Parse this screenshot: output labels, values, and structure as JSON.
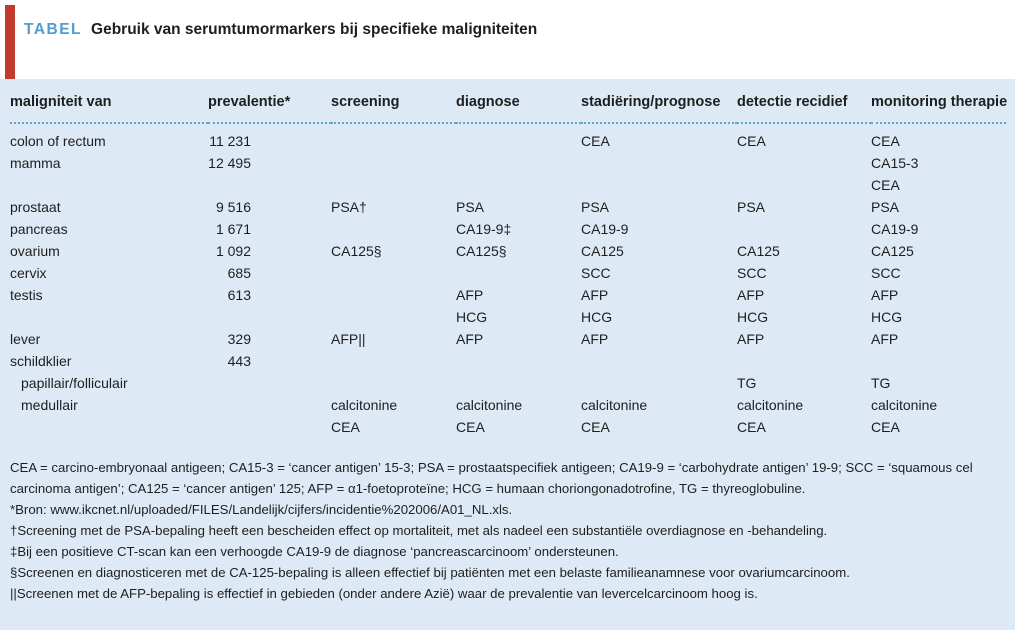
{
  "title": {
    "label": "TABEL",
    "text": "Gebruik van serumtumormarkers bij specifieke maligniteiten"
  },
  "colors": {
    "accent_bar": "#c23b2e",
    "tabel_label": "#4f9cce",
    "panel_background": "#ddeaf5",
    "dotted_rule": "#6ba4cf",
    "text": "#1e1e1e"
  },
  "table": {
    "columns": [
      "maligniteit van",
      "prevalentie*",
      "screening",
      "diagnose",
      "stadiëring/prognose",
      "detectie recidief",
      "monitoring therapie"
    ],
    "rows": [
      {
        "indent": false,
        "cells": [
          "colon of rectum",
          "11 231",
          "",
          "",
          "CEA",
          "CEA",
          "CEA"
        ]
      },
      {
        "indent": false,
        "cells": [
          "mamma",
          "12 495",
          "",
          "",
          "",
          "",
          "CA15-3"
        ]
      },
      {
        "indent": false,
        "cells": [
          "",
          "",
          "",
          "",
          "",
          "",
          "CEA"
        ]
      },
      {
        "indent": false,
        "cells": [
          "prostaat",
          "9 516",
          "PSA†",
          "PSA",
          "PSA",
          "PSA",
          "PSA"
        ]
      },
      {
        "indent": false,
        "cells": [
          "pancreas",
          "1 671",
          "",
          "CA19-9‡",
          "CA19-9",
          "",
          "CA19-9"
        ]
      },
      {
        "indent": false,
        "cells": [
          "ovarium",
          "1 092",
          "CA125§",
          "CA125§",
          "CA125",
          "CA125",
          "CA125"
        ]
      },
      {
        "indent": false,
        "cells": [
          "cervix",
          "685",
          "",
          "",
          "SCC",
          "SCC",
          "SCC"
        ]
      },
      {
        "indent": false,
        "cells": [
          "testis",
          "613",
          "",
          "AFP",
          "AFP",
          "AFP",
          "AFP"
        ]
      },
      {
        "indent": false,
        "cells": [
          "",
          "",
          "",
          "HCG",
          "HCG",
          "HCG",
          "HCG"
        ]
      },
      {
        "indent": false,
        "cells": [
          "lever",
          "329",
          "AFP||",
          "AFP",
          "AFP",
          "AFP",
          "AFP"
        ]
      },
      {
        "indent": false,
        "cells": [
          "schildklier",
          "443",
          "",
          "",
          "",
          "",
          ""
        ]
      },
      {
        "indent": true,
        "cells": [
          "papillair/folliculair",
          "",
          "",
          "",
          "",
          "TG",
          "TG"
        ]
      },
      {
        "indent": true,
        "cells": [
          "medullair",
          "",
          "calcitonine",
          "calcitonine",
          "calcitonine",
          "calcitonine",
          "calcitonine"
        ]
      },
      {
        "indent": false,
        "cells": [
          "",
          "",
          "CEA",
          "CEA",
          "CEA",
          "CEA",
          "CEA"
        ]
      }
    ]
  },
  "footnotes": [
    "CEA = carcino-embryonaal antigeen; CA15-3 = ‘cancer antigen’ 15-3; PSA = prostaatspecifiek antigeen; CA19-9 = ‘carbohydrate antigen’ 19-9; SCC = ‘squamous cel carcinoma antigen’; CA125 = ‘cancer antigen’ 125; AFP = α1-foetoproteïne; HCG = humaan choriongonadotrofine, TG = thyreoglobuline.",
    "*Bron: www.ikcnet.nl/uploaded/FILES/Landelijk/cijfers/incidentie%202006/A01_NL.xls.",
    "†Screening met de PSA-bepaling heeft een bescheiden effect op mortaliteit, met als nadeel een substantiële overdiagnose en -behandeling.",
    "‡Bij een positieve CT-scan kan een verhoogde CA19-9 de diagnose ‘pancreascarcinoom’ ondersteunen.",
    "§Screenen en diagnosticeren met de CA-125-bepaling is alleen effectief bij patiënten met een belaste familieanamnese voor ovariumcarcinoom.",
    "||Screenen met de AFP-bepaling is effectief in gebieden (onder andere Azië) waar de prevalentie van levercelcarcinoom hoog is."
  ]
}
